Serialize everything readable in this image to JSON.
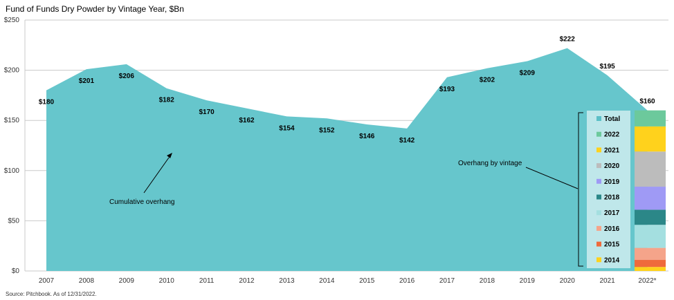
{
  "chart_data": {
    "type": "area",
    "title": "Fund of Funds Dry Powder by Vintage Year, $Bn",
    "categories": [
      "2007",
      "2008",
      "2009",
      "2010",
      "2011",
      "2012",
      "2013",
      "2014",
      "2015",
      "2016",
      "2017",
      "2018",
      "2019",
      "2020",
      "2021",
      "2022*"
    ],
    "series": [
      {
        "name": "Cumulative overhang",
        "values": [
          180,
          201,
          206,
          182,
          170,
          162,
          154,
          152,
          146,
          142,
          193,
          202,
          209,
          222,
          195,
          160
        ]
      }
    ],
    "data_labels": [
      "$180",
      "$201",
      "$206",
      "$182",
      "$170",
      "$162",
      "$154",
      "$152",
      "$146",
      "$142",
      "$193",
      "$202",
      "$209",
      "$222",
      "$195",
      "$160"
    ],
    "ylim": [
      0,
      250
    ],
    "yticks": [
      0,
      50,
      100,
      150,
      200,
      250
    ],
    "ytick_labels": [
      "$0",
      "$50",
      "$100",
      "$150",
      "$200",
      "$250"
    ],
    "grid": true,
    "annotations": {
      "cumulative": "Cumulative overhang",
      "vintage": "Overhang by vintage"
    },
    "stacked_bar": {
      "category": "2022*",
      "segments": [
        {
          "name": "2014",
          "value": 4
        },
        {
          "name": "2015",
          "value": 7
        },
        {
          "name": "2016",
          "value": 12
        },
        {
          "name": "2017",
          "value": 23
        },
        {
          "name": "2018",
          "value": 15
        },
        {
          "name": "2019",
          "value": 23
        },
        {
          "name": "2020",
          "value": 35
        },
        {
          "name": "2021",
          "value": 25
        },
        {
          "name": "2022",
          "value": 16
        }
      ]
    },
    "legend": [
      "Total",
      "2022",
      "2021",
      "2020",
      "2019",
      "2018",
      "2017",
      "2016",
      "2015",
      "2014"
    ],
    "source": "Source: Pitchbook. As of 12/31/2022."
  },
  "colors": {
    "area": "#66c6cc",
    "legend_bg": "#bfe7ea",
    "grid": "#c9c9c9",
    "Total": "#5bbfc7",
    "2022": "#6cc99c",
    "2021": "#ffd21c",
    "2020": "#bcbcbc",
    "2019": "#9f9af5",
    "2018": "#2b8788",
    "2017": "#a4dfe0",
    "2016": "#f5a48a",
    "2015": "#ef6a3c",
    "2014": "#ffd21c"
  }
}
